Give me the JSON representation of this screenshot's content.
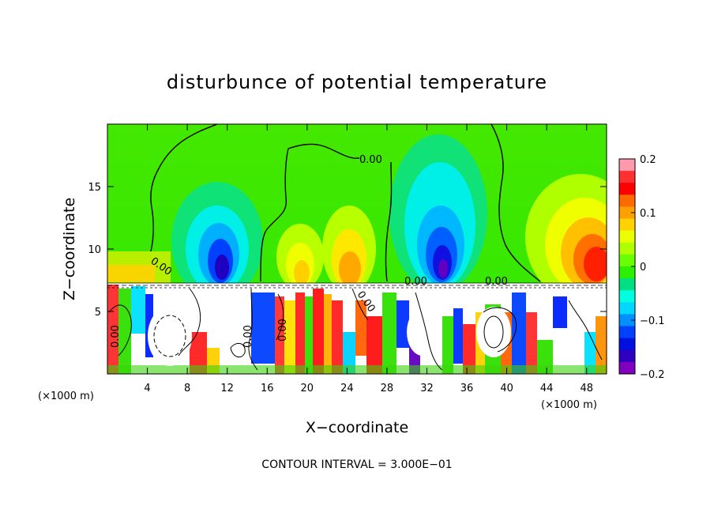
{
  "chart_data": {
    "type": "heatmap",
    "title": "disturbunce of potential temperature",
    "xlabel": "X−coordinate",
    "ylabel": "Z−coordinate",
    "x_unit_label": "(×1000 m)",
    "x_unit_label_right": "(×1000 m)",
    "xlim": [
      0,
      50
    ],
    "ylim": [
      0,
      20
    ],
    "x_ticks": [
      4,
      8,
      12,
      16,
      20,
      24,
      28,
      32,
      36,
      40,
      44,
      48
    ],
    "x_tick_labels": [
      "4",
      "8",
      "12",
      "16",
      "20",
      "24",
      "28",
      "32",
      "36",
      "40",
      "44",
      "48"
    ],
    "y_ticks": [
      5,
      10,
      15
    ],
    "y_tick_labels": [
      "5",
      "10",
      "15"
    ],
    "colorbar": {
      "range": [
        -0.2,
        0.2
      ],
      "ticks": [
        0.2,
        0.1,
        0,
        -0.1,
        -0.2
      ],
      "tick_labels": [
        "0.2",
        "0.1",
        "0",
        "−0.1",
        "−0.2"
      ],
      "colors": [
        "#ff9aae",
        "#ff3030",
        "#ff0000",
        "#ff6a00",
        "#ff9f00",
        "#ffd200",
        "#eaff00",
        "#b0ff00",
        "#6aff00",
        "#2bf000",
        "#00e080",
        "#00ffe0",
        "#00d8ff",
        "#0090ff",
        "#0040ff",
        "#0010e0",
        "#3000c0",
        "#8000c0"
      ]
    },
    "contour_labels": [
      "0.00",
      "0.00",
      "0.00",
      "0.00",
      "0.00",
      "0.00",
      "0.00",
      "0.00"
    ],
    "contour_interval_text": "CONTOUR INTERVAL = 3.000E−01",
    "features": {
      "surface_layer_top_z": 7.3,
      "cool_anomalies_upper": [
        {
          "x": 11,
          "z": 9.5,
          "value": -0.2
        },
        {
          "x": 33.5,
          "z": 9.5,
          "value": -0.2
        }
      ],
      "warm_anomalies_upper": [
        {
          "x": 19,
          "z": 10,
          "value": 0.1
        },
        {
          "x": 24.5,
          "z": 10,
          "value": 0.1
        },
        {
          "x": 48.5,
          "z": 10,
          "value": 0.15
        }
      ],
      "zero_contours_upper_x": [
        4.5,
        15.2,
        29,
        44
      ]
    }
  }
}
